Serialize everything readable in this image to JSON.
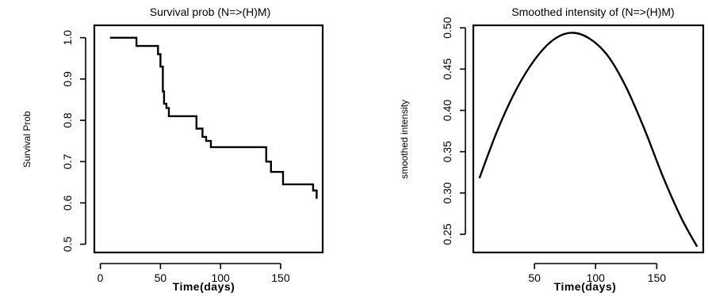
{
  "chart_data": [
    {
      "type": "line",
      "step": true,
      "title": "Survival prob (N=>(H)M)",
      "xlabel": "Time(days)",
      "ylabel": "Survival Prob",
      "xlim": [
        -5,
        185
      ],
      "ylim": [
        0.48,
        1.03
      ],
      "xticks": [
        "0",
        "50",
        "100",
        "150"
      ],
      "xtick_values": [
        0,
        50,
        100,
        150
      ],
      "yticks": [
        "0.5",
        "0.6",
        "0.7",
        "0.8",
        "0.9",
        "1.0"
      ],
      "ytick_values": [
        0.5,
        0.6,
        0.7,
        0.8,
        0.9,
        1.0
      ],
      "x": [
        8,
        30,
        30,
        48,
        48,
        50,
        50,
        52,
        52,
        53,
        53,
        55,
        55,
        57,
        57,
        60,
        60,
        80,
        80,
        85,
        85,
        88,
        88,
        92,
        92,
        138,
        138,
        142,
        142,
        152,
        152,
        177,
        177,
        180,
        180
      ],
      "y": [
        1.0,
        1.0,
        0.98,
        0.98,
        0.96,
        0.96,
        0.93,
        0.93,
        0.87,
        0.87,
        0.84,
        0.84,
        0.83,
        0.83,
        0.81,
        0.81,
        0.81,
        0.81,
        0.78,
        0.78,
        0.76,
        0.76,
        0.75,
        0.75,
        0.735,
        0.735,
        0.7,
        0.7,
        0.675,
        0.675,
        0.645,
        0.645,
        0.63,
        0.63,
        0.61
      ]
    },
    {
      "type": "line",
      "title": "Smoothed intensity   of (N=>(H)M)",
      "xlabel": "Time(days)",
      "ylabel": "smoothed intensity",
      "xlim": [
        0,
        188
      ],
      "ylim": [
        0.228,
        0.503
      ],
      "xticks": [
        "50",
        "100",
        "150"
      ],
      "xtick_values": [
        50,
        100,
        150
      ],
      "yticks": [
        "0.25",
        "0.30",
        "0.35",
        "0.40",
        "0.45",
        "0.50"
      ],
      "ytick_values": [
        0.25,
        0.3,
        0.35,
        0.4,
        0.45,
        0.5
      ],
      "x": [
        5,
        20,
        35,
        50,
        65,
        80,
        95,
        110,
        125,
        140,
        155,
        170,
        183
      ],
      "y": [
        0.318,
        0.377,
        0.425,
        0.461,
        0.485,
        0.494,
        0.487,
        0.466,
        0.428,
        0.377,
        0.32,
        0.27,
        0.235
      ]
    }
  ]
}
